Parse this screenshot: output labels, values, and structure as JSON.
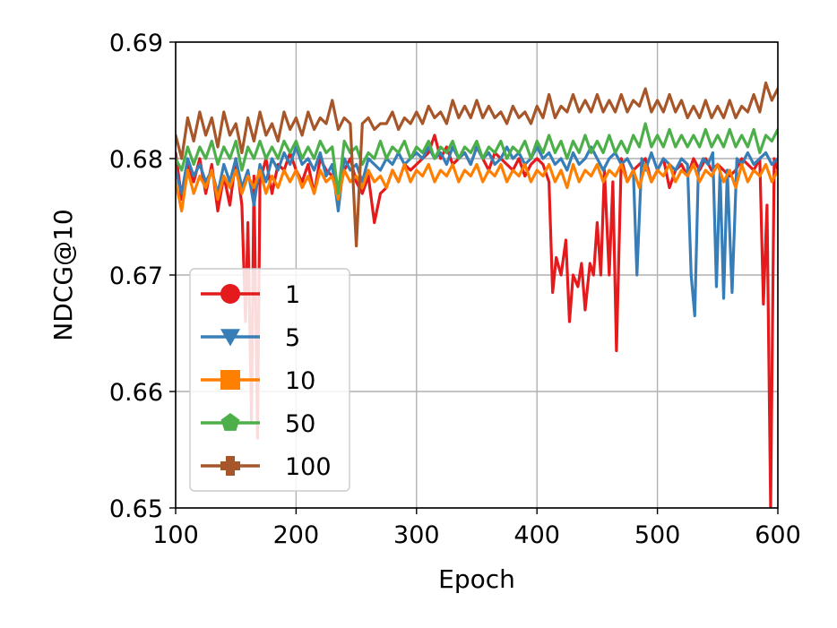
{
  "chart_data": {
    "type": "line",
    "title": "",
    "xlabel": "Epoch",
    "ylabel": "NDCG@10",
    "xlim": [
      100,
      600
    ],
    "ylim": [
      0.65,
      0.69
    ],
    "xticks": [
      100,
      200,
      300,
      400,
      500,
      600
    ],
    "xtick_labels": [
      "100",
      "200",
      "300",
      "400",
      "500",
      "600"
    ],
    "yticks": [
      0.65,
      0.66,
      0.67,
      0.68,
      0.69
    ],
    "ytick_labels": [
      "0.65",
      "0.66",
      "0.67",
      "0.68",
      "0.69"
    ],
    "grid": true,
    "legend_position": "lower-left",
    "series": [
      {
        "name": "1",
        "color": "#e41a1c",
        "marker": "circle",
        "x": [
          100,
          105,
          110,
          115,
          120,
          125,
          130,
          135,
          140,
          145,
          150,
          155,
          158,
          160,
          163,
          165,
          168,
          170,
          175,
          180,
          185,
          190,
          195,
          200,
          205,
          210,
          215,
          220,
          225,
          230,
          235,
          240,
          245,
          250,
          255,
          260,
          265,
          270,
          275,
          280,
          285,
          290,
          295,
          300,
          305,
          310,
          315,
          320,
          325,
          330,
          335,
          340,
          345,
          350,
          355,
          360,
          365,
          370,
          375,
          380,
          385,
          390,
          395,
          400,
          405,
          410,
          413,
          416,
          420,
          424,
          427,
          430,
          434,
          437,
          440,
          444,
          447,
          450,
          453,
          456,
          460,
          463,
          466,
          470,
          475,
          480,
          485,
          490,
          495,
          500,
          505,
          510,
          515,
          520,
          525,
          530,
          535,
          540,
          545,
          550,
          555,
          560,
          565,
          570,
          575,
          580,
          585,
          588,
          591,
          594,
          597,
          600
        ],
        "values": [
          0.6805,
          0.6765,
          0.6795,
          0.678,
          0.68,
          0.677,
          0.6795,
          0.6755,
          0.6785,
          0.676,
          0.68,
          0.676,
          0.666,
          0.6745,
          0.6575,
          0.6785,
          0.656,
          0.678,
          0.68,
          0.677,
          0.6795,
          0.679,
          0.6805,
          0.679,
          0.678,
          0.6795,
          0.677,
          0.68,
          0.679,
          0.6785,
          0.6775,
          0.679,
          0.68,
          0.678,
          0.677,
          0.6785,
          0.6745,
          0.677,
          0.6775,
          0.679,
          0.678,
          0.6795,
          0.679,
          0.6795,
          0.68,
          0.6805,
          0.682,
          0.68,
          0.681,
          0.6795,
          0.68,
          0.6805,
          0.6795,
          0.681,
          0.68,
          0.679,
          0.6805,
          0.68,
          0.6795,
          0.679,
          0.68,
          0.6785,
          0.6795,
          0.68,
          0.6795,
          0.678,
          0.6685,
          0.6715,
          0.67,
          0.673,
          0.666,
          0.67,
          0.669,
          0.671,
          0.667,
          0.671,
          0.67,
          0.6745,
          0.67,
          0.679,
          0.67,
          0.678,
          0.6635,
          0.68,
          0.678,
          0.679,
          0.6795,
          0.68,
          0.678,
          0.679,
          0.68,
          0.6775,
          0.679,
          0.6795,
          0.6785,
          0.68,
          0.679,
          0.68,
          0.679,
          0.6795,
          0.679,
          0.6785,
          0.679,
          0.68,
          0.6795,
          0.679,
          0.68,
          0.6675,
          0.676,
          0.65,
          0.68,
          0.679
        ]
      },
      {
        "name": "5",
        "color": "#377eb8",
        "marker": "triangle-down",
        "x": [
          100,
          105,
          110,
          115,
          120,
          125,
          130,
          135,
          140,
          145,
          150,
          155,
          160,
          165,
          170,
          175,
          180,
          185,
          190,
          195,
          200,
          205,
          210,
          215,
          220,
          225,
          230,
          235,
          240,
          245,
          250,
          255,
          260,
          265,
          270,
          275,
          280,
          285,
          290,
          295,
          300,
          305,
          310,
          315,
          320,
          325,
          330,
          335,
          340,
          345,
          350,
          355,
          360,
          365,
          370,
          375,
          380,
          385,
          390,
          395,
          400,
          405,
          410,
          415,
          420,
          425,
          430,
          435,
          440,
          445,
          450,
          455,
          460,
          465,
          470,
          475,
          480,
          483,
          487,
          490,
          495,
          500,
          505,
          510,
          515,
          520,
          525,
          528,
          531,
          534,
          538,
          542,
          546,
          549,
          552,
          555,
          558,
          562,
          566,
          570,
          575,
          580,
          585,
          590,
          595,
          600
        ],
        "values": [
          0.679,
          0.677,
          0.68,
          0.6785,
          0.6795,
          0.678,
          0.679,
          0.677,
          0.6795,
          0.678,
          0.68,
          0.6775,
          0.679,
          0.676,
          0.6795,
          0.678,
          0.68,
          0.679,
          0.6805,
          0.6795,
          0.681,
          0.6795,
          0.68,
          0.679,
          0.6805,
          0.6785,
          0.6795,
          0.6755,
          0.68,
          0.679,
          0.6795,
          0.678,
          0.68,
          0.6795,
          0.679,
          0.68,
          0.6795,
          0.6805,
          0.6795,
          0.68,
          0.6805,
          0.68,
          0.681,
          0.68,
          0.6805,
          0.6795,
          0.681,
          0.68,
          0.6805,
          0.6795,
          0.681,
          0.68,
          0.6805,
          0.6795,
          0.68,
          0.681,
          0.68,
          0.6805,
          0.6795,
          0.68,
          0.681,
          0.68,
          0.6805,
          0.6795,
          0.68,
          0.679,
          0.6805,
          0.6795,
          0.68,
          0.681,
          0.68,
          0.679,
          0.68,
          0.6805,
          0.6795,
          0.68,
          0.679,
          0.67,
          0.68,
          0.679,
          0.6805,
          0.679,
          0.68,
          0.6795,
          0.679,
          0.68,
          0.6795,
          0.67,
          0.6665,
          0.679,
          0.68,
          0.6795,
          0.6805,
          0.669,
          0.679,
          0.668,
          0.679,
          0.6685,
          0.68,
          0.6795,
          0.6805,
          0.6795,
          0.68,
          0.6805,
          0.6795,
          0.68
        ]
      },
      {
        "name": "10",
        "color": "#ff7f00",
        "marker": "square",
        "x": [
          100,
          105,
          110,
          115,
          120,
          125,
          130,
          135,
          140,
          145,
          150,
          155,
          160,
          165,
          170,
          175,
          180,
          185,
          190,
          195,
          200,
          205,
          210,
          215,
          220,
          225,
          230,
          235,
          240,
          245,
          250,
          255,
          260,
          265,
          270,
          275,
          280,
          285,
          290,
          295,
          300,
          305,
          310,
          315,
          320,
          325,
          330,
          335,
          340,
          345,
          350,
          355,
          360,
          365,
          370,
          375,
          380,
          385,
          390,
          395,
          400,
          405,
          410,
          415,
          420,
          425,
          430,
          435,
          440,
          445,
          450,
          455,
          460,
          465,
          470,
          475,
          480,
          485,
          490,
          495,
          500,
          505,
          510,
          515,
          520,
          525,
          530,
          535,
          540,
          545,
          550,
          555,
          560,
          565,
          570,
          575,
          580,
          585,
          590,
          595,
          600
        ],
        "values": [
          0.678,
          0.6755,
          0.679,
          0.677,
          0.6785,
          0.6775,
          0.679,
          0.6765,
          0.6785,
          0.6775,
          0.679,
          0.677,
          0.6785,
          0.6775,
          0.679,
          0.677,
          0.6785,
          0.6775,
          0.679,
          0.678,
          0.679,
          0.6775,
          0.6785,
          0.677,
          0.679,
          0.678,
          0.6785,
          0.6765,
          0.679,
          0.678,
          0.6785,
          0.6775,
          0.679,
          0.678,
          0.6785,
          0.6775,
          0.679,
          0.678,
          0.6795,
          0.678,
          0.679,
          0.6785,
          0.6795,
          0.678,
          0.679,
          0.6785,
          0.6795,
          0.678,
          0.679,
          0.6785,
          0.6795,
          0.678,
          0.679,
          0.6785,
          0.6795,
          0.678,
          0.679,
          0.6785,
          0.6795,
          0.678,
          0.679,
          0.6785,
          0.6795,
          0.678,
          0.679,
          0.6775,
          0.6795,
          0.678,
          0.679,
          0.6785,
          0.6795,
          0.678,
          0.679,
          0.6785,
          0.6795,
          0.678,
          0.679,
          0.6775,
          0.6795,
          0.678,
          0.679,
          0.6785,
          0.6795,
          0.678,
          0.679,
          0.6785,
          0.6795,
          0.678,
          0.679,
          0.6785,
          0.6795,
          0.678,
          0.679,
          0.6775,
          0.6795,
          0.678,
          0.679,
          0.6785,
          0.6795,
          0.678,
          0.679
        ]
      },
      {
        "name": "50",
        "color": "#4daf4a",
        "marker": "pentagon",
        "x": [
          100,
          105,
          110,
          115,
          120,
          125,
          130,
          135,
          140,
          145,
          150,
          155,
          160,
          165,
          170,
          175,
          180,
          185,
          190,
          195,
          200,
          205,
          210,
          215,
          220,
          225,
          230,
          235,
          240,
          245,
          250,
          255,
          260,
          265,
          270,
          275,
          280,
          285,
          290,
          295,
          300,
          305,
          310,
          315,
          320,
          325,
          330,
          335,
          340,
          345,
          350,
          355,
          360,
          365,
          370,
          375,
          380,
          385,
          390,
          395,
          400,
          405,
          410,
          415,
          420,
          425,
          430,
          435,
          440,
          445,
          450,
          455,
          460,
          465,
          470,
          475,
          480,
          485,
          490,
          495,
          500,
          505,
          510,
          515,
          520,
          525,
          530,
          535,
          540,
          545,
          550,
          555,
          560,
          565,
          570,
          575,
          580,
          585,
          590,
          595,
          600
        ],
        "values": [
          0.68,
          0.679,
          0.681,
          0.6795,
          0.681,
          0.68,
          0.6815,
          0.6795,
          0.681,
          0.68,
          0.6815,
          0.679,
          0.681,
          0.68,
          0.6815,
          0.68,
          0.681,
          0.68,
          0.6815,
          0.6805,
          0.6815,
          0.68,
          0.681,
          0.68,
          0.6815,
          0.6805,
          0.681,
          0.677,
          0.6815,
          0.6805,
          0.681,
          0.6795,
          0.6805,
          0.68,
          0.6815,
          0.68,
          0.681,
          0.6805,
          0.6815,
          0.68,
          0.681,
          0.6805,
          0.6815,
          0.68,
          0.681,
          0.6805,
          0.6815,
          0.68,
          0.681,
          0.6805,
          0.6815,
          0.68,
          0.681,
          0.6805,
          0.6815,
          0.68,
          0.681,
          0.6805,
          0.6815,
          0.68,
          0.6815,
          0.6805,
          0.682,
          0.6805,
          0.6815,
          0.68,
          0.6815,
          0.6805,
          0.682,
          0.6805,
          0.6815,
          0.6805,
          0.682,
          0.6805,
          0.6815,
          0.6805,
          0.682,
          0.681,
          0.683,
          0.681,
          0.682,
          0.681,
          0.6825,
          0.681,
          0.682,
          0.681,
          0.682,
          0.681,
          0.6825,
          0.681,
          0.682,
          0.681,
          0.6825,
          0.681,
          0.682,
          0.681,
          0.6825,
          0.6805,
          0.682,
          0.6815,
          0.6825
        ]
      },
      {
        "name": "100",
        "color": "#a65628",
        "marker": "plus-filled",
        "x": [
          100,
          105,
          110,
          115,
          120,
          125,
          130,
          135,
          140,
          145,
          150,
          155,
          160,
          165,
          170,
          175,
          180,
          185,
          190,
          195,
          200,
          205,
          210,
          215,
          220,
          225,
          230,
          235,
          240,
          245,
          250,
          255,
          260,
          265,
          270,
          275,
          280,
          285,
          290,
          295,
          300,
          305,
          310,
          315,
          320,
          325,
          330,
          335,
          340,
          345,
          350,
          355,
          360,
          365,
          370,
          375,
          380,
          385,
          390,
          395,
          400,
          405,
          410,
          415,
          420,
          425,
          430,
          435,
          440,
          445,
          450,
          455,
          460,
          465,
          470,
          475,
          480,
          485,
          490,
          495,
          500,
          505,
          510,
          515,
          520,
          525,
          530,
          535,
          540,
          545,
          550,
          555,
          560,
          565,
          570,
          575,
          580,
          585,
          590,
          595,
          600
        ],
        "values": [
          0.682,
          0.68,
          0.6835,
          0.6815,
          0.684,
          0.682,
          0.6835,
          0.681,
          0.684,
          0.682,
          0.683,
          0.6805,
          0.6835,
          0.6815,
          0.684,
          0.682,
          0.683,
          0.6815,
          0.684,
          0.6825,
          0.6835,
          0.682,
          0.684,
          0.6825,
          0.6835,
          0.683,
          0.685,
          0.6825,
          0.6835,
          0.683,
          0.6725,
          0.683,
          0.6835,
          0.6825,
          0.683,
          0.683,
          0.684,
          0.6825,
          0.6835,
          0.683,
          0.684,
          0.683,
          0.6845,
          0.6835,
          0.684,
          0.683,
          0.685,
          0.6835,
          0.6845,
          0.6835,
          0.685,
          0.6835,
          0.6845,
          0.6835,
          0.684,
          0.683,
          0.6845,
          0.6835,
          0.684,
          0.683,
          0.6845,
          0.6835,
          0.6855,
          0.6835,
          0.6845,
          0.684,
          0.6855,
          0.684,
          0.685,
          0.684,
          0.6855,
          0.684,
          0.685,
          0.684,
          0.6855,
          0.684,
          0.685,
          0.6845,
          0.686,
          0.684,
          0.685,
          0.684,
          0.6855,
          0.684,
          0.685,
          0.6835,
          0.6845,
          0.6835,
          0.685,
          0.6835,
          0.6845,
          0.6835,
          0.685,
          0.6835,
          0.6845,
          0.684,
          0.6855,
          0.684,
          0.6865,
          0.685,
          0.686
        ]
      }
    ]
  }
}
